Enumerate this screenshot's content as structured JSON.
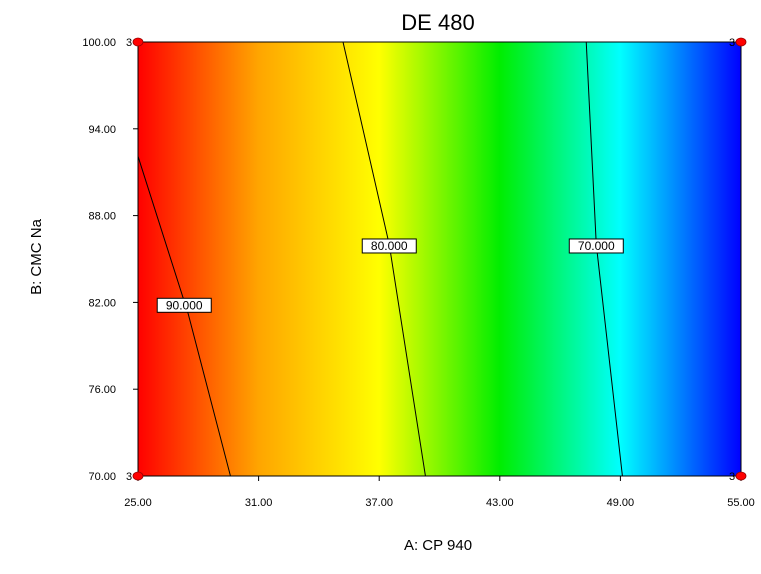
{
  "chart_data": {
    "type": "contour",
    "title": "DE 480",
    "xlabel": "A: CP 940",
    "ylabel": "B: CMC Na",
    "xlim": [
      25,
      55
    ],
    "ylim": [
      70,
      100
    ],
    "x_ticks": [
      "25.00",
      "31.00",
      "37.00",
      "43.00",
      "49.00",
      "55.00"
    ],
    "y_ticks": [
      "70.00",
      "76.00",
      "82.00",
      "88.00",
      "94.00",
      "100.00"
    ],
    "color_scale": [
      "#ff0000",
      "#ffa500",
      "#ffff00",
      "#00ee00",
      "#00ffff",
      "#0000ff"
    ],
    "contours": [
      {
        "label": "90.000",
        "points": [
          [
            25.0,
            92.1
          ],
          [
            27.5,
            81.2
          ],
          [
            29.6,
            70.0
          ]
        ],
        "label_at": [
          27.3,
          81.8
        ]
      },
      {
        "label": "80.000",
        "points": [
          [
            35.2,
            100.0
          ],
          [
            37.5,
            86.0
          ],
          [
            39.3,
            70.0
          ]
        ],
        "label_at": [
          37.5,
          85.9
        ]
      },
      {
        "label": "70.000",
        "points": [
          [
            47.3,
            100.0
          ],
          [
            47.8,
            86.0
          ],
          [
            49.1,
            70.0
          ]
        ],
        "label_at": [
          47.8,
          85.9
        ]
      }
    ],
    "design_points": [
      {
        "x": 25,
        "y": 100,
        "replicates": "3"
      },
      {
        "x": 55,
        "y": 100,
        "replicates": "3"
      },
      {
        "x": 25,
        "y": 70,
        "replicates": "3"
      },
      {
        "x": 55,
        "y": 70,
        "replicates": "3"
      }
    ],
    "point_color": "#ff0000"
  }
}
